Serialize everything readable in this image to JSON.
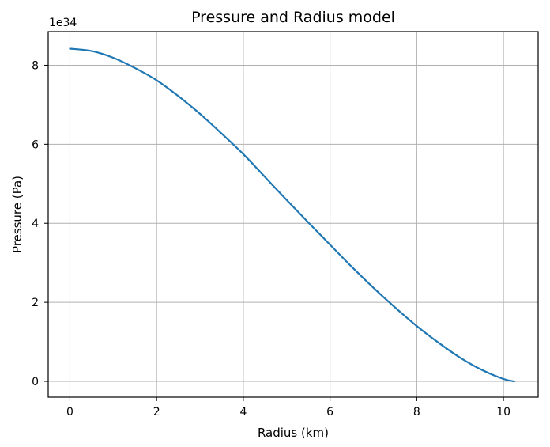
{
  "chart_data": {
    "type": "line",
    "title": "Pressure and Radius model",
    "xlabel": "Radius (km)",
    "ylabel": "Pressure (Pa)",
    "y_offset_label": "1e34",
    "xlim": [
      -0.5,
      10.8
    ],
    "ylim": [
      -0.4,
      8.85
    ],
    "y_scale_factor": 1e+34,
    "grid": true,
    "x_ticks": [
      0,
      2,
      4,
      6,
      8,
      10
    ],
    "y_ticks": [
      0,
      2,
      4,
      6,
      8
    ],
    "x_tick_labels": [
      "0",
      "2",
      "4",
      "6",
      "8",
      "10"
    ],
    "y_tick_labels": [
      "0",
      "2",
      "4",
      "6",
      "8"
    ],
    "series": [
      {
        "color": "#1f77b4",
        "x": [
          0,
          0.5,
          1,
          1.5,
          2,
          2.5,
          3,
          3.5,
          4,
          4.5,
          5,
          5.5,
          6,
          6.5,
          7,
          7.5,
          8,
          8.5,
          9,
          9.5,
          10,
          10.25
        ],
        "y": [
          8.42,
          8.36,
          8.19,
          7.93,
          7.62,
          7.22,
          6.77,
          6.27,
          5.75,
          5.17,
          4.59,
          4.02,
          3.46,
          2.9,
          2.37,
          1.87,
          1.4,
          0.98,
          0.6,
          0.29,
          0.06,
          0.0
        ]
      }
    ]
  }
}
